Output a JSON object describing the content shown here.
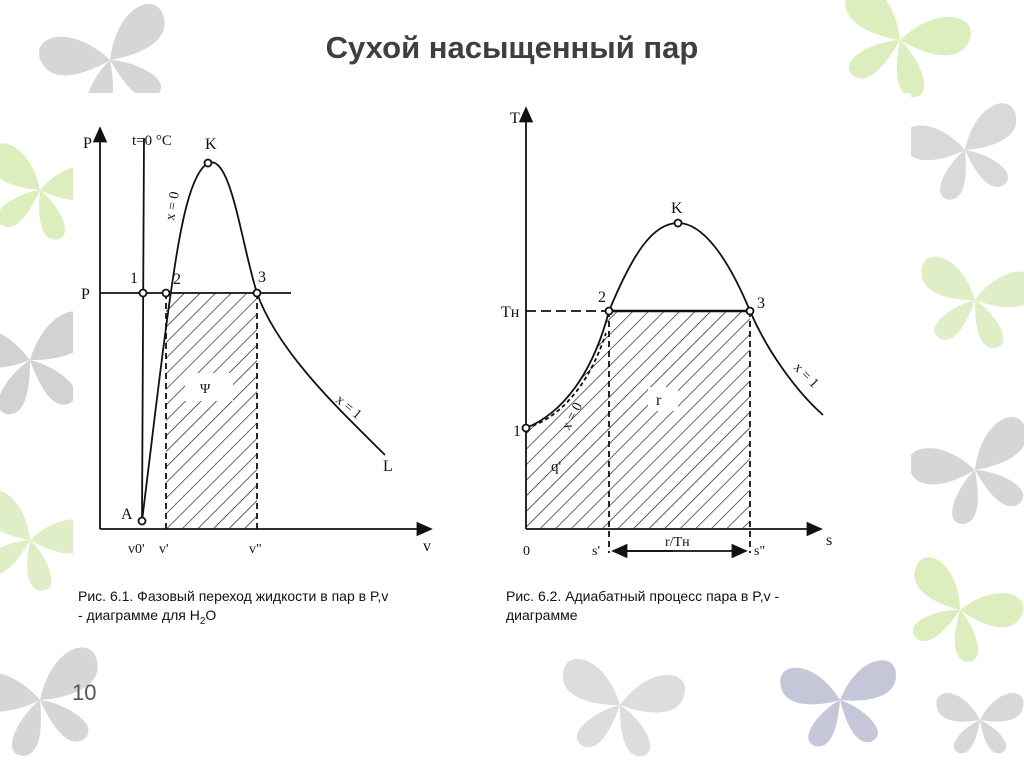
{
  "slide": {
    "title": "Сухой насыщенный пар",
    "page_number": "10"
  },
  "figure1": {
    "caption_line1": "Рис. 6.1. Фазовый переход жидкости в пар в P,v",
    "caption_line2": "- диаграмме для H",
    "caption_sub": "2",
    "caption_tail": "O",
    "axis_y": "P",
    "axis_x": "v",
    "p_label": "P",
    "isotherm_label": "t=0 °C",
    "point_k": "K",
    "point_1": "1",
    "point_2": "2",
    "point_3": "3",
    "point_a": "A",
    "point_l": "L",
    "line_x0": "x = 0",
    "line_x1": "x = 1",
    "area_label": "Ψ",
    "tick_v0": "v0'",
    "tick_v1": "v'",
    "tick_v2": "v\""
  },
  "figure2": {
    "caption_line1": "Рис. 6.2. Адиабатный процесс пара в P,v -",
    "caption_line2": "диаграмме",
    "axis_y": "T",
    "axis_x": "s",
    "tn_label": "Tн",
    "point_k": "K",
    "point_1": "1",
    "point_2": "2",
    "point_3": "3",
    "line_x0": "x = 0",
    "line_x1": "x = 1",
    "area_r": "r",
    "area_q": "q'",
    "tick_0": "0",
    "tick_s1": "s'",
    "tick_s2": "s\"",
    "dim_label": "r/Tн"
  },
  "colors": {
    "title": "#3f3f3f",
    "ink": "#111111",
    "butterfly_gray": "#c9c9c9",
    "butterfly_green": "#d6ecb0",
    "butterfly_blue": "#b9b9d0"
  }
}
